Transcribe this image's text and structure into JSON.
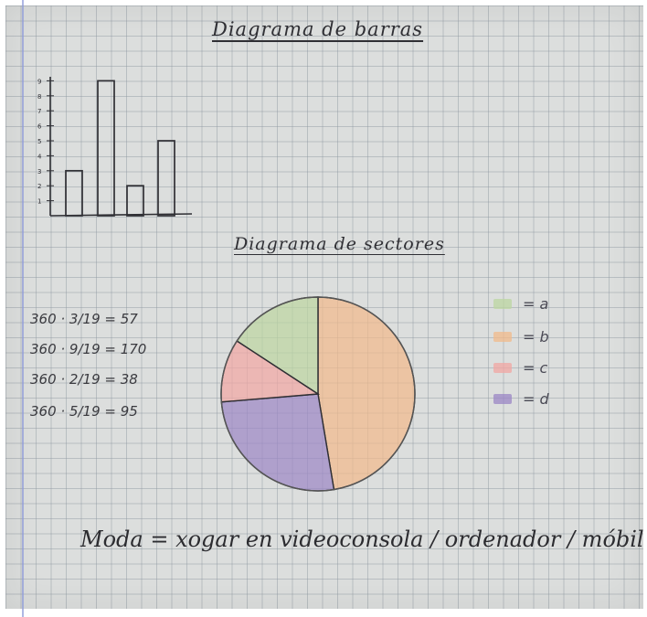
{
  "bar_title": "Diagrama de barras",
  "pie_title": "Diagrama de sectores",
  "calculations": [
    "360 · 3/19 = 57",
    "360 · 9/19 = 170",
    "360 · 2/19 = 38",
    "360 · 5/19 = 95"
  ],
  "legend": [
    {
      "label": "= a",
      "color": "#bcd6a0"
    },
    {
      "label": "= b",
      "color": "#f2b98a"
    },
    {
      "label": "= c",
      "color": "#f2a6a2"
    },
    {
      "label": "= d",
      "color": "#9b86c4"
    }
  ],
  "footer": "Moda = xogar en videoconsola / ordenador / móbil",
  "colors": {
    "ink": "#2f2f34",
    "paper": "#dcdedd",
    "margin": "#8d9ad8"
  },
  "chart_data": [
    {
      "type": "bar",
      "title": "Diagrama de barras",
      "values": [
        3,
        9,
        2,
        5
      ],
      "ylim": [
        0,
        9
      ],
      "y_ticks": [
        "1",
        "2",
        "3",
        "4",
        "5",
        "6",
        "7",
        "8",
        "9"
      ],
      "grid": true
    },
    {
      "type": "pie",
      "title": "Diagrama de sectores",
      "series": [
        {
          "name": "a",
          "value": 3,
          "degrees": 57,
          "color": "#bcd6a0"
        },
        {
          "name": "b",
          "value": 9,
          "degrees": 170,
          "color": "#f2b98a"
        },
        {
          "name": "c",
          "value": 2,
          "degrees": 38,
          "color": "#f2a6a2"
        },
        {
          "name": "d",
          "value": 5,
          "degrees": 95,
          "color": "#9b86c4"
        }
      ],
      "legend_position": "right"
    }
  ]
}
